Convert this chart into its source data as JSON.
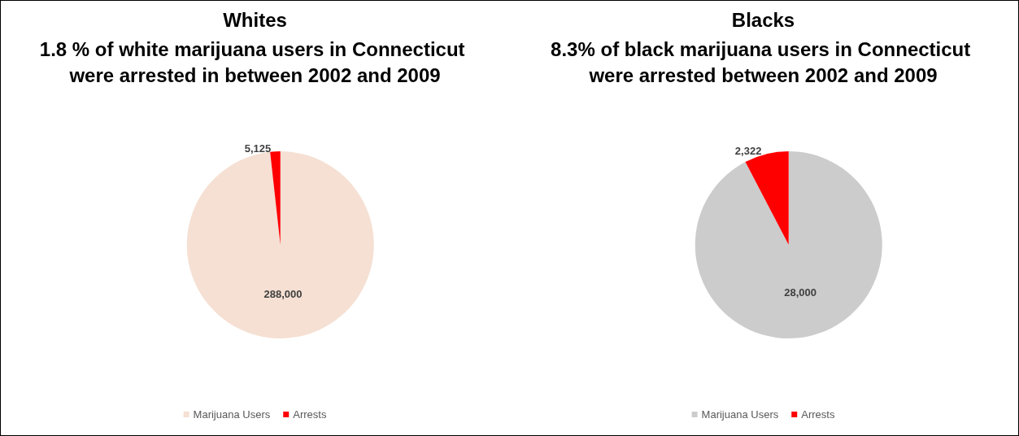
{
  "chart_data": [
    {
      "type": "pie",
      "title": "Whites",
      "subtitle": "1.8 % of white marijuana users in Connecticut were arrested in between 2002 and 2009",
      "categories": [
        "Marijuana Users",
        "Arrests"
      ],
      "values": [
        288000,
        5125
      ],
      "colors": [
        "#f5e0d3",
        "#ff0000"
      ],
      "value_labels": [
        "288,000",
        "5,125"
      ],
      "legend": "bottom"
    },
    {
      "type": "pie",
      "title": "Blacks",
      "subtitle": "8.3% of black marijuana users in Connecticut were arrested between 2002 and 2009",
      "categories": [
        "Marijuana Users",
        "Arrests"
      ],
      "values": [
        28000,
        2322
      ],
      "colors": [
        "#cccccc",
        "#ff0000"
      ],
      "value_labels": [
        "28,000",
        "2,322"
      ],
      "legend": "bottom"
    }
  ]
}
